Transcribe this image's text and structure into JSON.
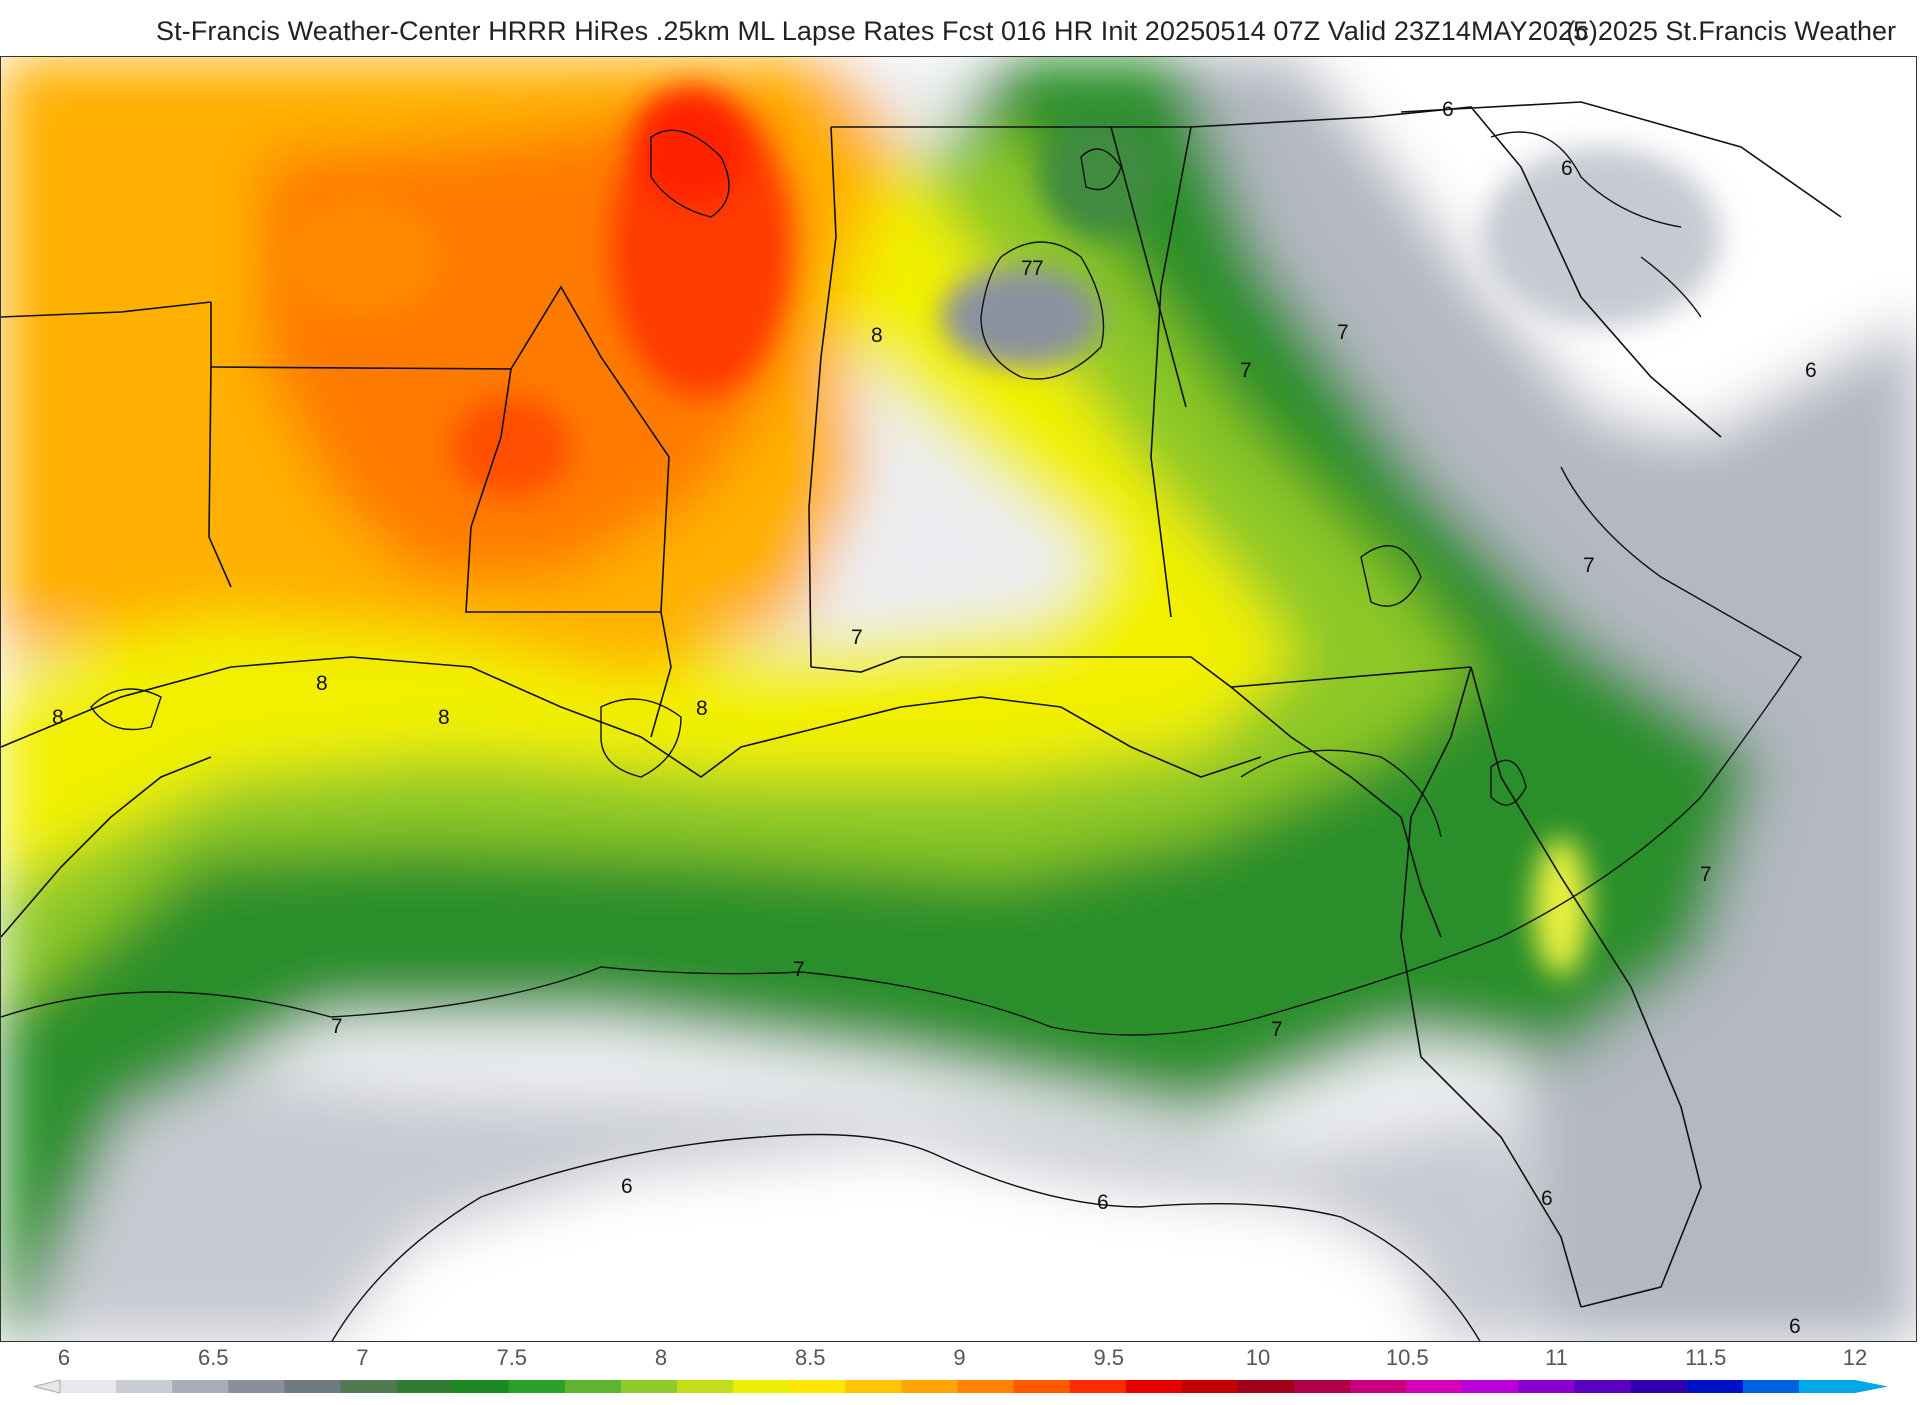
{
  "header": {
    "title": "St-Francis Weather-Center HRRR HiRes .25km ML Lapse Rates  Fcst 016 HR Init 20250514 07Z  Valid 23Z14MAY2025",
    "credit": "(c)2025 St.Francis Weather"
  },
  "map": {
    "field": "ML Lapse Rates",
    "contour_labels": [
      "8",
      "8",
      "8",
      "8",
      "8",
      "7",
      "7",
      "7",
      "7",
      "7",
      "7",
      "7",
      "7",
      "7",
      "7",
      "6",
      "6",
      "6",
      "6",
      "6",
      "6",
      "6"
    ]
  },
  "legend": {
    "ticks": [
      "6",
      "6.5",
      "7",
      "7.5",
      "8",
      "8.5",
      "9",
      "9.5",
      "10",
      "10.5",
      "11",
      "11.5",
      "12"
    ],
    "colors": [
      "#e6e8ec",
      "#c9ccd3",
      "#a9adb7",
      "#8a8f9c",
      "#6e7a80",
      "#4f7a52",
      "#2f7d33",
      "#1b8a22",
      "#2aa22a",
      "#5cb52c",
      "#8fcb2a",
      "#c2de16",
      "#eaf000",
      "#ffe600",
      "#ffc400",
      "#ffa400",
      "#ff8200",
      "#ff5a00",
      "#ff2a00",
      "#e80000",
      "#c40000",
      "#a00018",
      "#b0004a",
      "#c80080",
      "#d800b8",
      "#b800d8",
      "#8a00d0",
      "#5a00c0",
      "#3000b0",
      "#0010c8",
      "#0060e0",
      "#00a8e8"
    ]
  }
}
